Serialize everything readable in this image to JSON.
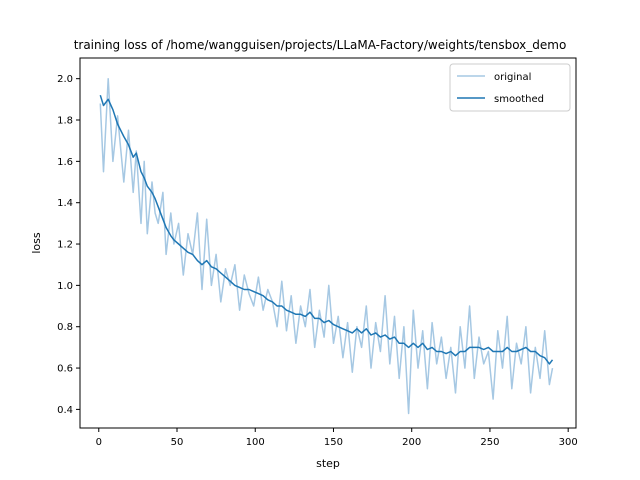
{
  "chart_data": {
    "type": "line",
    "title": "training loss of /home/wangguisen/projects/LLaMA-Factory/weights/tensbox_demo",
    "xlabel": "step",
    "ylabel": "loss",
    "xlim": [
      -12,
      305
    ],
    "ylim": [
      0.31,
      2.1
    ],
    "xticks": [
      0,
      50,
      100,
      150,
      200,
      250,
      300
    ],
    "yticks": [
      0.4,
      0.6,
      0.8,
      1.0,
      1.2,
      1.4,
      1.6,
      1.8,
      2.0
    ],
    "legend": {
      "position": "upper-right",
      "entries": [
        "original",
        "smoothed"
      ]
    },
    "grid": false,
    "series": [
      {
        "name": "original",
        "color": "#a6c8e3",
        "x": [
          1,
          3,
          6,
          9,
          12,
          16,
          19,
          22,
          24,
          27,
          29,
          31,
          34,
          36,
          38,
          41,
          43,
          46,
          48,
          51,
          54,
          57,
          60,
          63,
          66,
          69,
          72,
          75,
          78,
          81,
          84,
          87,
          90,
          93,
          96,
          99,
          102,
          105,
          108,
          111,
          114,
          117,
          120,
          123,
          126,
          129,
          132,
          135,
          138,
          141,
          144,
          147,
          150,
          153,
          156,
          159,
          162,
          165,
          168,
          171,
          174,
          177,
          180,
          183,
          186,
          189,
          192,
          195,
          198,
          201,
          204,
          207,
          210,
          213,
          216,
          219,
          222,
          225,
          228,
          231,
          234,
          237,
          240,
          243,
          246,
          249,
          252,
          255,
          258,
          261,
          264,
          267,
          270,
          273,
          276,
          279,
          282,
          285,
          288,
          290
        ],
        "values": [
          1.88,
          1.55,
          2.0,
          1.6,
          1.82,
          1.5,
          1.75,
          1.45,
          1.65,
          1.3,
          1.6,
          1.25,
          1.5,
          1.35,
          1.3,
          1.45,
          1.15,
          1.35,
          1.2,
          1.3,
          1.05,
          1.25,
          1.15,
          1.35,
          0.98,
          1.32,
          1.0,
          1.15,
          0.92,
          1.08,
          1.0,
          1.1,
          0.88,
          1.05,
          0.96,
          0.9,
          1.04,
          0.88,
          0.98,
          0.92,
          0.8,
          1.02,
          0.78,
          0.95,
          0.72,
          0.9,
          0.8,
          0.98,
          0.7,
          0.88,
          0.75,
          1.0,
          0.72,
          0.85,
          0.65,
          0.82,
          0.58,
          0.8,
          0.7,
          0.9,
          0.6,
          0.82,
          0.68,
          0.95,
          0.62,
          0.85,
          0.55,
          0.8,
          0.38,
          0.88,
          0.6,
          0.78,
          0.5,
          0.82,
          0.62,
          0.75,
          0.55,
          0.7,
          0.48,
          0.8,
          0.6,
          0.9,
          0.55,
          0.75,
          0.62,
          0.68,
          0.45,
          0.78,
          0.6,
          0.85,
          0.5,
          0.72,
          0.62,
          0.8,
          0.48,
          0.7,
          0.55,
          0.78,
          0.52,
          0.6
        ]
      },
      {
        "name": "smoothed",
        "color": "#1f77b4",
        "x": [
          1,
          3,
          6,
          9,
          12,
          16,
          19,
          22,
          24,
          27,
          29,
          31,
          34,
          36,
          38,
          41,
          43,
          46,
          48,
          51,
          54,
          57,
          60,
          63,
          66,
          69,
          72,
          75,
          78,
          81,
          84,
          87,
          90,
          93,
          96,
          99,
          102,
          105,
          108,
          111,
          114,
          117,
          120,
          123,
          126,
          129,
          132,
          135,
          138,
          141,
          144,
          147,
          150,
          153,
          156,
          159,
          162,
          165,
          168,
          171,
          174,
          177,
          180,
          183,
          186,
          189,
          192,
          195,
          198,
          201,
          204,
          207,
          210,
          213,
          216,
          219,
          222,
          225,
          228,
          231,
          234,
          237,
          240,
          243,
          246,
          249,
          252,
          255,
          258,
          261,
          264,
          267,
          270,
          273,
          276,
          279,
          282,
          285,
          288,
          290
        ],
        "values": [
          1.92,
          1.87,
          1.9,
          1.85,
          1.78,
          1.72,
          1.68,
          1.62,
          1.64,
          1.55,
          1.52,
          1.48,
          1.45,
          1.42,
          1.38,
          1.32,
          1.28,
          1.24,
          1.22,
          1.2,
          1.18,
          1.16,
          1.15,
          1.12,
          1.1,
          1.12,
          1.09,
          1.08,
          1.06,
          1.04,
          1.02,
          1.0,
          0.99,
          0.98,
          0.98,
          0.97,
          0.96,
          0.95,
          0.93,
          0.92,
          0.9,
          0.9,
          0.88,
          0.87,
          0.86,
          0.86,
          0.85,
          0.87,
          0.84,
          0.84,
          0.82,
          0.83,
          0.81,
          0.8,
          0.79,
          0.78,
          0.77,
          0.79,
          0.77,
          0.79,
          0.76,
          0.77,
          0.75,
          0.76,
          0.74,
          0.75,
          0.72,
          0.72,
          0.7,
          0.72,
          0.7,
          0.72,
          0.69,
          0.7,
          0.68,
          0.68,
          0.67,
          0.68,
          0.66,
          0.68,
          0.68,
          0.7,
          0.7,
          0.7,
          0.69,
          0.7,
          0.68,
          0.68,
          0.68,
          0.7,
          0.68,
          0.68,
          0.69,
          0.7,
          0.68,
          0.68,
          0.66,
          0.65,
          0.62,
          0.64
        ]
      }
    ]
  }
}
